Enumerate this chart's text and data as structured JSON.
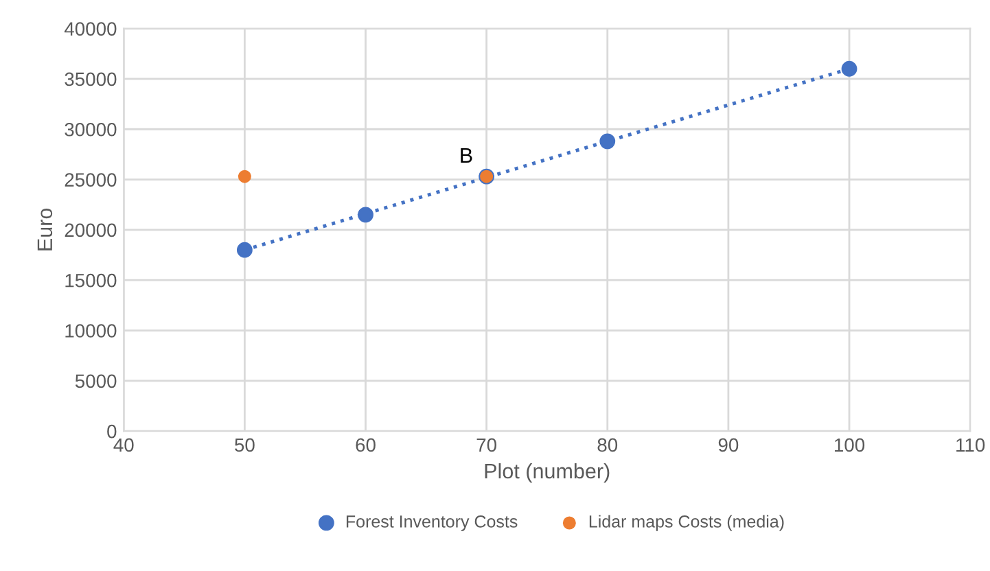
{
  "chart_data": {
    "type": "scatter",
    "xlabel": "Plot (number)",
    "ylabel": "Euro",
    "xlim": [
      40,
      110
    ],
    "xticks": [
      40,
      50,
      60,
      70,
      80,
      90,
      100,
      110
    ],
    "ylim": [
      0,
      40000
    ],
    "yticks": [
      0,
      5000,
      10000,
      15000,
      20000,
      25000,
      30000,
      35000,
      40000
    ],
    "grid": true,
    "legend": "bottom",
    "marker": "circle",
    "annotations": [
      {
        "text": "B",
        "x": 70,
        "y": 25300
      }
    ],
    "series": [
      {
        "type": "line",
        "color": "#4472c4",
        "line_style": "dotted",
        "marker": "none",
        "x": [
          50,
          100
        ],
        "values": [
          18000,
          36000
        ]
      },
      {
        "name": "Forest Inventory Costs",
        "color": "#4472c4",
        "x": [
          50,
          60,
          70,
          80,
          100
        ],
        "values": [
          18000,
          21500,
          25300,
          28800,
          36000
        ]
      },
      {
        "name": "Lidar maps Costs (media)",
        "color": "#ed7d31",
        "x": [
          50,
          70
        ],
        "values": [
          25300,
          25300
        ]
      }
    ]
  }
}
